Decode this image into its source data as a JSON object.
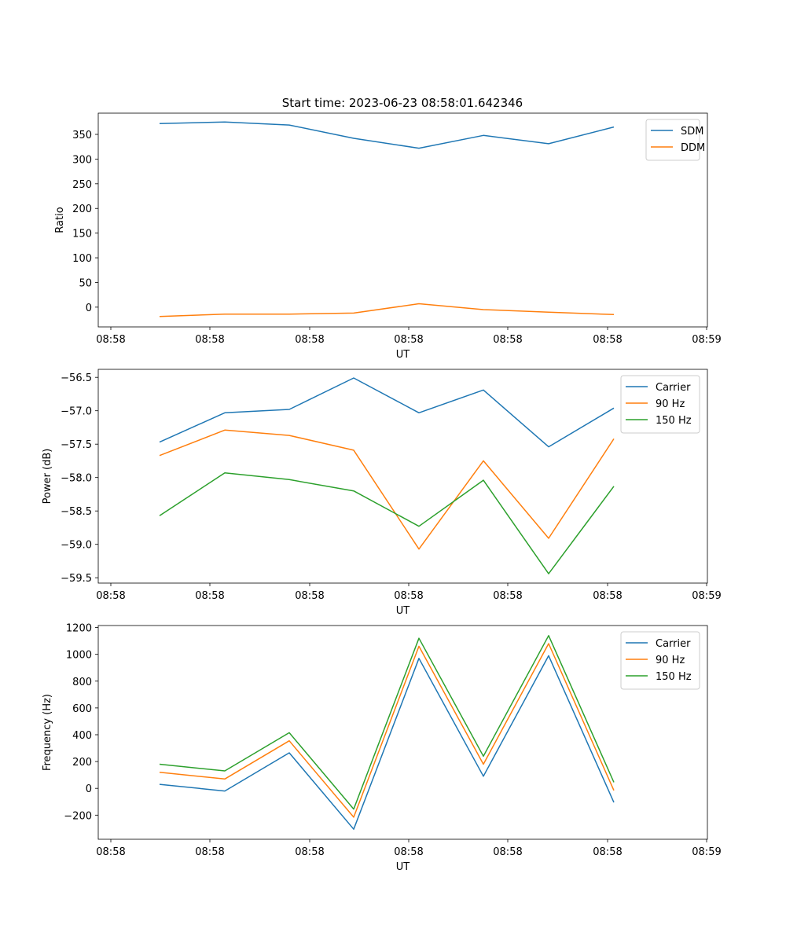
{
  "title": "Start time: 2023-06-23 08:58:01.642346",
  "colors": {
    "blue": "#1f77b4",
    "orange": "#ff7f0e",
    "green": "#2ca02c"
  },
  "chart_data": [
    {
      "type": "line",
      "xlabel": "UT",
      "ylabel": "Ratio",
      "x_tick_labels": [
        "08:58",
        "08:58",
        "08:58",
        "08:58",
        "08:58",
        "08:58",
        "08:59"
      ],
      "y_ticks": [
        0,
        50,
        100,
        150,
        200,
        250,
        300,
        350
      ],
      "ylim": [
        -40,
        393
      ],
      "legend_position": "upper right",
      "series": [
        {
          "name": "SDM",
          "color": "#1f77b4",
          "values": [
            372,
            375,
            369,
            342,
            322,
            348,
            331,
            365
          ]
        },
        {
          "name": "DDM",
          "color": "#ff7f0e",
          "values": [
            -19,
            -14,
            -14,
            -12,
            7,
            -5,
            -10,
            -15
          ]
        }
      ]
    },
    {
      "type": "line",
      "xlabel": "UT",
      "ylabel": "Power (dB)",
      "x_tick_labels": [
        "08:58",
        "08:58",
        "08:58",
        "08:58",
        "08:58",
        "08:58",
        "08:59"
      ],
      "y_ticks": [
        -59.5,
        -59.0,
        -58.5,
        -58.0,
        -57.5,
        -57.0,
        -56.5
      ],
      "y_tick_labels": [
        "−59.5",
        "−59.0",
        "−58.5",
        "−58.0",
        "−57.5",
        "−57.0",
        "−56.5"
      ],
      "ylim": [
        -59.58,
        -56.38
      ],
      "legend_position": "upper right",
      "series": [
        {
          "name": "Carrier",
          "color": "#1f77b4",
          "values": [
            -57.47,
            -57.03,
            -56.98,
            -56.51,
            -57.03,
            -56.69,
            -57.54,
            -56.96
          ]
        },
        {
          "name": "90 Hz",
          "color": "#ff7f0e",
          "values": [
            -57.67,
            -57.29,
            -57.37,
            -57.59,
            -59.07,
            -57.75,
            -58.91,
            -57.42
          ]
        },
        {
          "name": "150 Hz",
          "color": "#2ca02c",
          "values": [
            -58.57,
            -57.93,
            -58.03,
            -58.2,
            -58.73,
            -58.04,
            -59.44,
            -58.13
          ]
        }
      ]
    },
    {
      "type": "line",
      "xlabel": "UT",
      "ylabel": "Frequency (Hz)",
      "x_tick_labels": [
        "08:58",
        "08:58",
        "08:58",
        "08:58",
        "08:58",
        "08:58",
        "08:59"
      ],
      "y_ticks": [
        -200,
        0,
        200,
        400,
        600,
        800,
        1000,
        1200
      ],
      "y_tick_labels": [
        "−200",
        "0",
        "200",
        "400",
        "600",
        "800",
        "1000",
        "1200"
      ],
      "ylim": [
        -380,
        1215
      ],
      "legend_position": "upper right",
      "series": [
        {
          "name": "Carrier",
          "color": "#1f77b4",
          "values": [
            30,
            -20,
            265,
            -305,
            970,
            90,
            990,
            -105
          ]
        },
        {
          "name": "90 Hz",
          "color": "#ff7f0e",
          "values": [
            120,
            70,
            355,
            -215,
            1060,
            180,
            1080,
            -15
          ]
        },
        {
          "name": "150 Hz",
          "color": "#2ca02c",
          "values": [
            180,
            130,
            415,
            -155,
            1120,
            240,
            1140,
            45
          ]
        }
      ]
    }
  ]
}
